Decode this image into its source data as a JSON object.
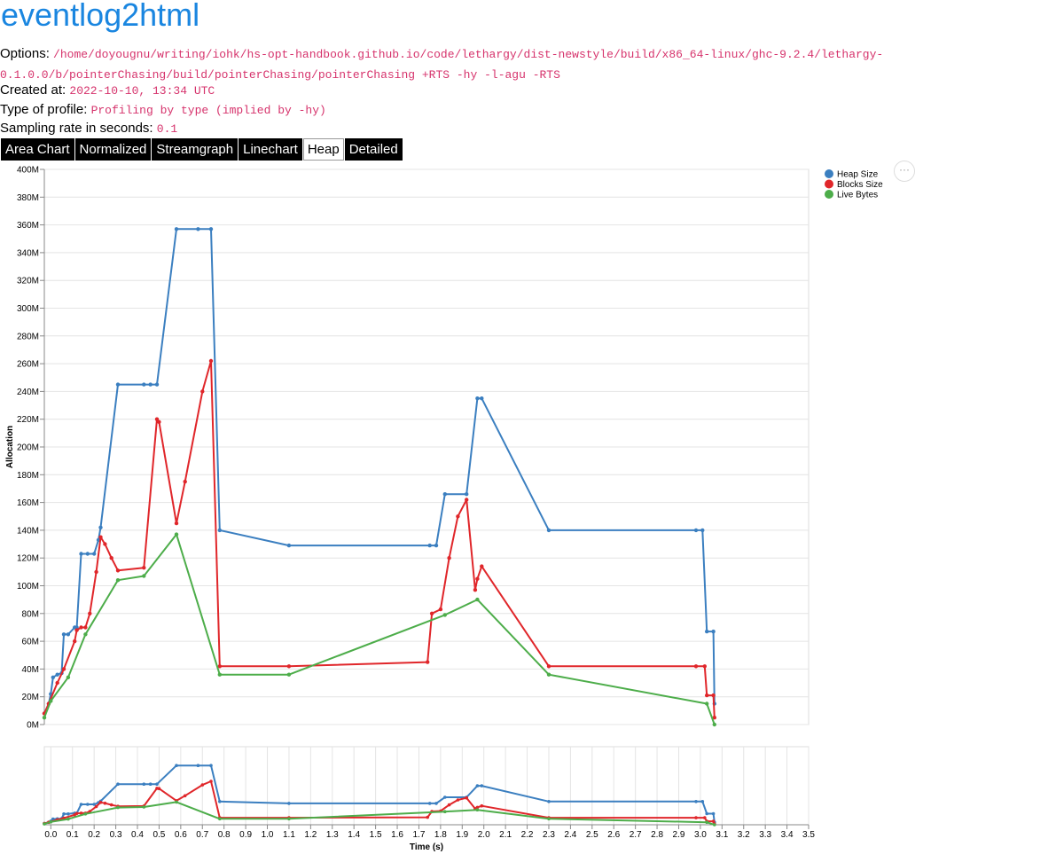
{
  "header": {
    "title": "eventlog2html"
  },
  "meta": {
    "options_label": "Options:",
    "options_value": "/home/doyougnu/writing/iohk/hs-opt-handbook.github.io/code/lethargy/dist-newstyle/build/x86_64-linux/ghc-9.2.4/lethargy-0.1.0.0/b/pointerChasing/build/pointerChasing/pointerChasing +RTS -hy -l-agu -RTS",
    "created_label": "Created at:",
    "created_value": "2022-10-10, 13:34 UTC",
    "type_label": "Type of profile:",
    "type_value": "Profiling by type (implied by -hy)",
    "rate_label": "Sampling rate in seconds:",
    "rate_value": "0.1"
  },
  "tabs": [
    {
      "label": "Area Chart",
      "active": false
    },
    {
      "label": "Normalized",
      "active": false
    },
    {
      "label": "Streamgraph",
      "active": false
    },
    {
      "label": "Linechart",
      "active": false
    },
    {
      "label": "Heap",
      "active": true
    },
    {
      "label": "Detailed",
      "active": false
    }
  ],
  "actions_menu": {
    "icon": "ellipsis-icon",
    "label": "···"
  },
  "chart_data": {
    "type": "line",
    "ylabel": "Allocation",
    "xlabel": "Time (s)",
    "ylim": [
      0,
      400
    ],
    "y_unit": "M",
    "yticks": [
      0,
      20,
      40,
      60,
      80,
      100,
      120,
      140,
      160,
      180,
      200,
      220,
      240,
      260,
      280,
      300,
      320,
      340,
      360,
      380,
      400
    ],
    "xlim": [
      -0.03,
      3.5
    ],
    "xticks": [
      0.0,
      0.1,
      0.2,
      0.3,
      0.4,
      0.5,
      0.6,
      0.7,
      0.8,
      0.9,
      1.0,
      1.1,
      1.2,
      1.3,
      1.4,
      1.5,
      1.6,
      1.7,
      1.8,
      1.9,
      2.0,
      2.1,
      2.2,
      2.3,
      2.4,
      2.5,
      2.6,
      2.7,
      2.8,
      2.9,
      3.0,
      3.1,
      3.2,
      3.3,
      3.4,
      3.5
    ],
    "grid": true,
    "legend_position": "top-right",
    "series": [
      {
        "name": "Heap Size",
        "color": "#3b7fc0",
        "x": [
          -0.03,
          -0.01,
          0.0,
          0.01,
          0.03,
          0.05,
          0.06,
          0.08,
          0.11,
          0.12,
          0.14,
          0.17,
          0.2,
          0.22,
          0.23,
          0.31,
          0.43,
          0.46,
          0.49,
          0.58,
          0.68,
          0.74,
          0.78,
          1.1,
          1.75,
          1.78,
          1.82,
          1.92,
          1.97,
          1.99,
          2.3,
          2.98,
          3.01,
          3.03,
          3.06,
          3.065
        ],
        "y": [
          8,
          15,
          22,
          34,
          36,
          37,
          65,
          65,
          70,
          70,
          123,
          123,
          123,
          133,
          142,
          245,
          245,
          245,
          245,
          357,
          357,
          357,
          140,
          129,
          129,
          129,
          166,
          166,
          235,
          235,
          140,
          140,
          140,
          67,
          67,
          15
        ]
      },
      {
        "name": "Blocks Size",
        "color": "#e0262a",
        "x": [
          -0.03,
          -0.01,
          0.03,
          0.06,
          0.11,
          0.12,
          0.14,
          0.16,
          0.18,
          0.21,
          0.23,
          0.25,
          0.28,
          0.31,
          0.43,
          0.49,
          0.5,
          0.58,
          0.62,
          0.7,
          0.74,
          0.78,
          1.1,
          1.74,
          1.76,
          1.8,
          1.84,
          1.88,
          1.92,
          1.96,
          1.97,
          1.99,
          2.3,
          2.98,
          3.02,
          3.03,
          3.06,
          3.065
        ],
        "y": [
          8,
          15,
          30,
          40,
          60,
          68,
          70,
          70,
          80,
          110,
          135,
          130,
          120,
          111,
          113,
          220,
          218,
          145,
          175,
          240,
          262,
          42,
          42,
          45,
          80,
          83,
          120,
          150,
          162,
          97,
          105,
          114,
          42,
          42,
          42,
          21,
          21,
          5
        ]
      },
      {
        "name": "Live Bytes",
        "color": "#4dad4a",
        "x": [
          -0.03,
          0.0,
          0.08,
          0.16,
          0.31,
          0.43,
          0.58,
          0.78,
          1.1,
          1.82,
          1.97,
          2.3,
          3.03,
          3.065
        ],
        "y": [
          5,
          17,
          34,
          65,
          104,
          107,
          137,
          36,
          36,
          79,
          90,
          36,
          15,
          0
        ]
      }
    ]
  }
}
